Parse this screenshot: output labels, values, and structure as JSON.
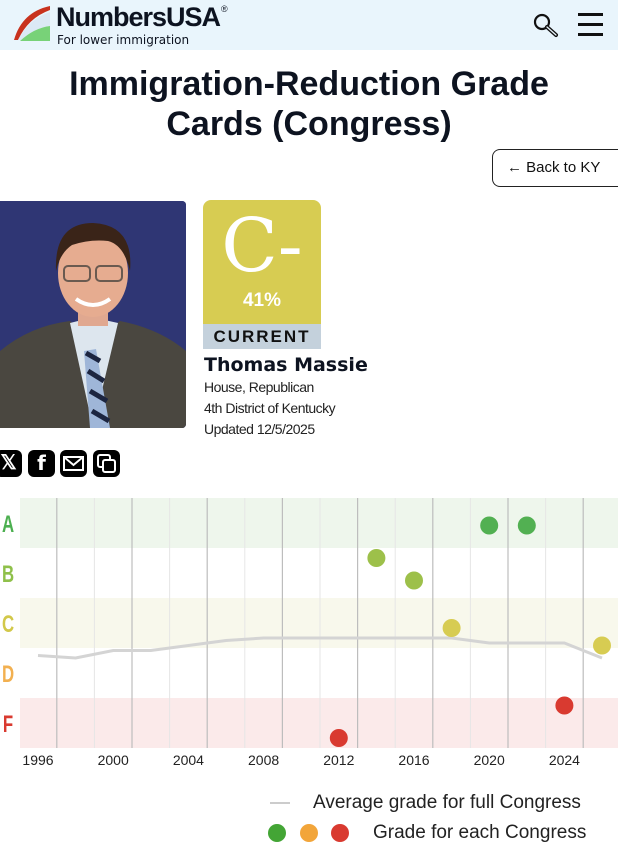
{
  "header": {
    "brand": "NumbersUSA",
    "registered": "®",
    "tagline": "For lower immigration",
    "search_icon": "search-icon",
    "menu_icon": "hamburger-menu-icon"
  },
  "page": {
    "title": "Immigration-Reduction Grade Cards (Congress)",
    "back_label": "← Back to KY"
  },
  "profile": {
    "grade": "C-",
    "percent": "41%",
    "status": "CURRENT",
    "name": "Thomas Massie",
    "chamber": "House, Republican",
    "district": "4th District of Kentucky",
    "updated": "Updated 12/5/2025",
    "grade_color": "#d7cc52"
  },
  "share": {
    "icons": [
      "x-icon",
      "facebook-icon",
      "email-icon",
      "copy-icon"
    ]
  },
  "chart_data": {
    "type": "scatter",
    "y_bands": [
      {
        "label": "A",
        "color": "#4caf50"
      },
      {
        "label": "B",
        "color": "#8fc04a"
      },
      {
        "label": "C",
        "color": "#d2c84a"
      },
      {
        "label": "D",
        "color": "#f2b050"
      },
      {
        "label": "F",
        "color": "#d93a30"
      }
    ],
    "x_ticks": [
      "1996",
      "2000",
      "2004",
      "2008",
      "2012",
      "2016",
      "2020",
      "2024"
    ],
    "xlim": [
      1996,
      2027
    ],
    "ylim": [
      0,
      100
    ],
    "grid": true,
    "series": [
      {
        "name": "Grade for each Congress",
        "type": "scatter",
        "points": [
          [
            2012,
            4,
            "#d93a30"
          ],
          [
            2014,
            76,
            "#9dc04a"
          ],
          [
            2016,
            67,
            "#9dc04a"
          ],
          [
            2018,
            48,
            "#d7cc52"
          ],
          [
            2020,
            89,
            "#52b052"
          ],
          [
            2022,
            89,
            "#52b052"
          ],
          [
            2024,
            17,
            "#d93a30"
          ],
          [
            2026,
            41,
            "#d7cc52"
          ]
        ]
      },
      {
        "name": "Average grade for full Congress",
        "type": "line",
        "color": "#d4d4d4",
        "points": [
          [
            1996,
            37
          ],
          [
            1998,
            36
          ],
          [
            2000,
            39
          ],
          [
            2002,
            39
          ],
          [
            2004,
            41
          ],
          [
            2006,
            43
          ],
          [
            2008,
            44
          ],
          [
            2010,
            44
          ],
          [
            2012,
            44
          ],
          [
            2014,
            44
          ],
          [
            2016,
            44
          ],
          [
            2018,
            44
          ],
          [
            2020,
            42
          ],
          [
            2022,
            42
          ],
          [
            2024,
            42
          ],
          [
            2026,
            36
          ]
        ]
      }
    ],
    "legend": {
      "line_label": "Average grade for full Congress",
      "dots_label": "Grade for each Congress",
      "dot_colors": [
        "#43a535",
        "#f2a53a",
        "#d93a30"
      ],
      "placement": "bottom-right"
    }
  }
}
